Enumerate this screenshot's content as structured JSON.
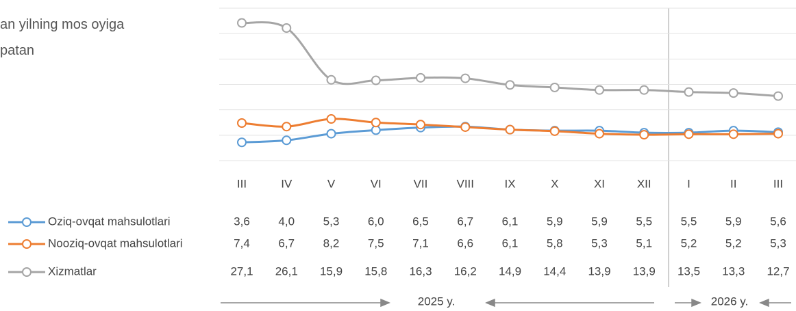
{
  "chart_data": {
    "type": "line",
    "title": [
      "an yilning mos oyiga",
      "patan"
    ],
    "categories": [
      "III",
      "IV",
      "V",
      "VI",
      "VII",
      "VIII",
      "IX",
      "X",
      "XI",
      "XII",
      "I",
      "II",
      "III"
    ],
    "series": [
      {
        "name": "Oziq-ovqat mahsulotlari",
        "color": "#5b9bd5",
        "values": [
          3.6,
          4.0,
          5.3,
          6.0,
          6.5,
          6.7,
          6.1,
          5.9,
          5.9,
          5.5,
          5.5,
          5.9,
          5.6
        ],
        "value_labels": [
          "3,6",
          "4,0",
          "5,3",
          "6,0",
          "6,5",
          "6,7",
          "6,1",
          "5,9",
          "5,9",
          "5,5",
          "5,5",
          "5,9",
          "5,6"
        ]
      },
      {
        "name": "Nooziq-ovqat mahsulotlari",
        "color": "#ed7d31",
        "values": [
          7.4,
          6.7,
          8.2,
          7.5,
          7.1,
          6.6,
          6.1,
          5.8,
          5.3,
          5.1,
          5.2,
          5.2,
          5.3
        ],
        "value_labels": [
          "7,4",
          "6,7",
          "8,2",
          "7,5",
          "7,1",
          "6,6",
          "6,1",
          "5,8",
          "5,3",
          "5,1",
          "5,2",
          "5,2",
          "5,3"
        ]
      },
      {
        "name": "Xizmatlar",
        "color": "#a5a5a5",
        "values": [
          27.1,
          26.1,
          15.9,
          15.8,
          16.3,
          16.2,
          14.9,
          14.4,
          13.9,
          13.9,
          13.5,
          13.3,
          12.7
        ],
        "value_labels": [
          "27,1",
          "26,1",
          "15,9",
          "15,8",
          "16,3",
          "16,2",
          "14,9",
          "14,4",
          "13,9",
          "13,9",
          "13,5",
          "13,3",
          "12,7"
        ]
      }
    ],
    "ylim": [
      0,
      30
    ],
    "yticks": [
      0,
      5,
      10,
      15,
      20,
      25,
      30
    ],
    "grid": true,
    "period_labels": [
      "2025 y.",
      "2026 y."
    ]
  }
}
